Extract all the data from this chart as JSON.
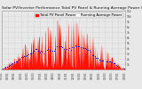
{
  "title": "Solar PV/Inverter Performance Total PV Panel & Running Average Power Output",
  "title_fontsize": 3.2,
  "background_color": "#e8e8e8",
  "plot_bg_color": "#e8e8e8",
  "grid_color": "#bbbbbb",
  "bar_color": "#ff1100",
  "avg_color": "#0000cc",
  "ylim": [
    0,
    11000
  ],
  "yticks": [
    1000,
    2000,
    3000,
    4000,
    5000,
    6000,
    7000,
    8000,
    9000,
    10000,
    11000
  ],
  "ytick_labels": [
    "1k",
    "2k",
    "3k",
    "4k",
    "5k",
    "6k",
    "7k",
    "8k",
    "9k",
    "10k",
    "11k"
  ],
  "n_points": 350,
  "legend_pv": "Total PV Panel Power",
  "legend_avg": "Running Average Power",
  "legend_fontsize": 2.8,
  "tick_fontsize": 2.2
}
